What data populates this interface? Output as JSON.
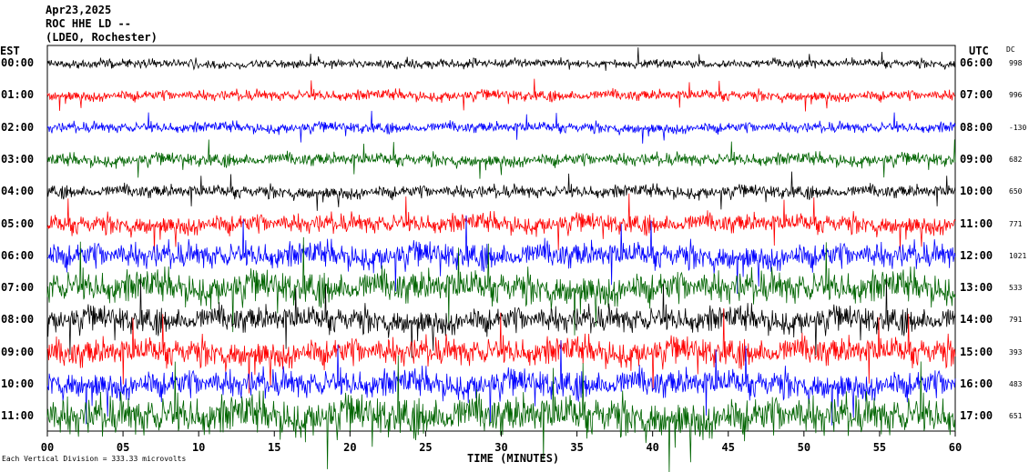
{
  "header": {
    "date": "Apr23,2025",
    "station": "ROC HHE LD --",
    "network": "(LDEO, Rochester)"
  },
  "axis_labels": {
    "left": "EST",
    "right": "UTC",
    "dc": "DC",
    "xlabel": "TIME (MINUTES)"
  },
  "footer": "Each Vertical Division = 333.33 microvolts",
  "chart_data": {
    "type": "line",
    "title": "ROC HHE LD --",
    "xlabel": "TIME (MINUTES)",
    "xlim": [
      0,
      60
    ],
    "x_ticks": [
      "00",
      "05",
      "10",
      "15",
      "20",
      "25",
      "30",
      "35",
      "40",
      "45",
      "50",
      "55",
      "60"
    ],
    "rows": [
      {
        "est": "00:00",
        "utc": "06:00",
        "dc": "998",
        "color": "#000000",
        "amplitude": 0.2
      },
      {
        "est": "01:00",
        "utc": "07:00",
        "dc": "996",
        "color": "#ff0000",
        "amplitude": 0.25
      },
      {
        "est": "02:00",
        "utc": "08:00",
        "dc": "-130",
        "color": "#0000ff",
        "amplitude": 0.25
      },
      {
        "est": "03:00",
        "utc": "09:00",
        "dc": "682",
        "color": "#006400",
        "amplitude": 0.3
      },
      {
        "est": "04:00",
        "utc": "10:00",
        "dc": "650",
        "color": "#000000",
        "amplitude": 0.3
      },
      {
        "est": "05:00",
        "utc": "11:00",
        "dc": "771",
        "color": "#ff0000",
        "amplitude": 0.45
      },
      {
        "est": "06:00",
        "utc": "12:00",
        "dc": "1021",
        "color": "#0000ff",
        "amplitude": 0.6
      },
      {
        "est": "07:00",
        "utc": "13:00",
        "dc": "533",
        "color": "#006400",
        "amplitude": 0.75
      },
      {
        "est": "08:00",
        "utc": "14:00",
        "dc": "791",
        "color": "#000000",
        "amplitude": 0.6
      },
      {
        "est": "09:00",
        "utc": "15:00",
        "dc": "393",
        "color": "#ff0000",
        "amplitude": 0.65
      },
      {
        "est": "10:00",
        "utc": "16:00",
        "dc": "483",
        "color": "#0000ff",
        "amplitude": 0.65
      },
      {
        "est": "11:00",
        "utc": "17:00",
        "dc": "651",
        "color": "#006400",
        "amplitude": 0.9
      }
    ],
    "grid": false
  }
}
